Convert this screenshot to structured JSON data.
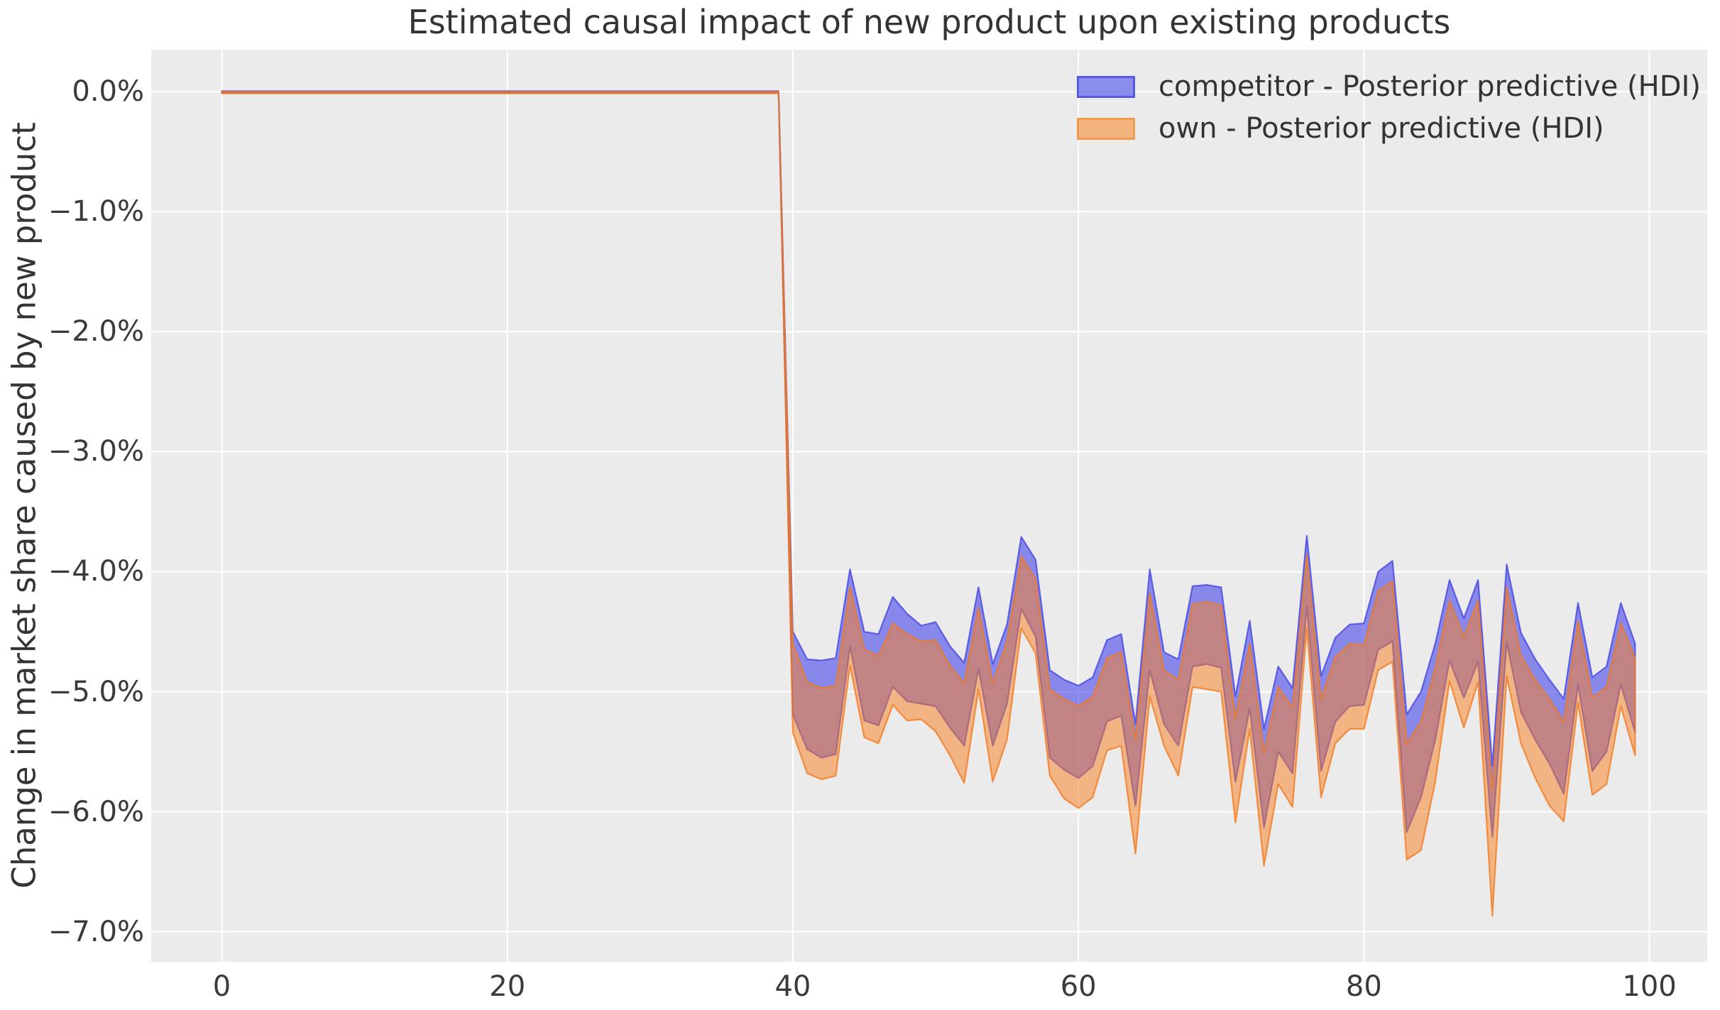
{
  "chart": {
    "title": "Estimated causal impact of new product upon existing products",
    "ylabel": "Change in market share caused by new product"
  },
  "legend": {
    "items": [
      {
        "label": "competitor - Posterior predictive (HDI)",
        "fill": "#8b8dec",
        "edge": "#5659e2"
      },
      {
        "label": "own - Posterior predictive (HDI)",
        "fill": "#f3b37e",
        "edge": "#ef9a4d"
      }
    ]
  },
  "chart_data": {
    "type": "area",
    "title": "Estimated causal impact of new product upon existing products",
    "xlabel": "",
    "ylabel": "Change in market share caused by new product",
    "grid": true,
    "legend_position": "upper right",
    "plot_bg_color": "#ebebeb",
    "grid_color": "#ffffff",
    "text_color": "#3a3a3a",
    "xlim": [
      -4.95,
      104.05
    ],
    "ylim": [
      -7.25,
      0.35
    ],
    "xticks": {
      "values": [
        0,
        20,
        40,
        60,
        80,
        100
      ],
      "labels": [
        "0",
        "20",
        "40",
        "60",
        "80",
        "100"
      ]
    },
    "yticks": {
      "values": [
        0,
        -1,
        -2,
        -3,
        -4,
        -5,
        -6,
        -7
      ],
      "labels": [
        "0.0%",
        "−1.0%",
        "−2.0%",
        "−3.0%",
        "−4.0%",
        "−5.0%",
        "−6.0%",
        "−7.0%"
      ]
    },
    "note": "HDI bands are flat at 0% for x=0..39 (pre-intervention), then drop at x=40; values in percent",
    "series": [
      {
        "name": "competitor",
        "legend_label": "competitor - Posterior predictive (HDI)",
        "fill_color": "#3e3eeb",
        "fill_opacity": 0.57,
        "edge_color": "#4646e1",
        "edge_opacity": 0.8,
        "edge_width": 2.2,
        "x": [
          0,
          39,
          40,
          41,
          42,
          43,
          44,
          45,
          46,
          47,
          48,
          49,
          50,
          51,
          52,
          53,
          54,
          55,
          56,
          57,
          58,
          59,
          60,
          61,
          62,
          63,
          64,
          65,
          66,
          67,
          68,
          69,
          70,
          71,
          72,
          73,
          74,
          75,
          76,
          77,
          78,
          79,
          80,
          81,
          82,
          83,
          84,
          85,
          86,
          87,
          88,
          89,
          90,
          91,
          92,
          93,
          94,
          95,
          96,
          97,
          98,
          99
        ],
        "hi": [
          0.005,
          0.005,
          -4.5,
          -4.73,
          -4.74,
          -4.72,
          -3.98,
          -4.5,
          -4.52,
          -4.21,
          -4.35,
          -4.45,
          -4.42,
          -4.62,
          -4.76,
          -4.13,
          -4.77,
          -4.44,
          -3.71,
          -3.9,
          -4.82,
          -4.9,
          -4.95,
          -4.88,
          -4.57,
          -4.52,
          -5.27,
          -3.98,
          -4.67,
          -4.73,
          -4.12,
          -4.11,
          -4.13,
          -5.04,
          -4.41,
          -5.31,
          -4.79,
          -4.97,
          -3.7,
          -4.87,
          -4.55,
          -4.44,
          -4.43,
          -4.0,
          -3.91,
          -5.19,
          -5.0,
          -4.6,
          -4.07,
          -4.39,
          -4.07,
          -5.62,
          -3.94,
          -4.51,
          -4.73,
          -4.9,
          -5.06,
          -4.26,
          -4.88,
          -4.79,
          -4.26,
          -4.6
        ],
        "lo": [
          -0.01,
          -0.01,
          -5.19,
          -5.48,
          -5.55,
          -5.52,
          -4.62,
          -5.24,
          -5.28,
          -4.96,
          -5.08,
          -5.1,
          -5.12,
          -5.3,
          -5.45,
          -4.81,
          -5.45,
          -5.1,
          -4.31,
          -4.54,
          -5.55,
          -5.65,
          -5.72,
          -5.62,
          -5.25,
          -5.2,
          -5.95,
          -4.82,
          -5.27,
          -5.45,
          -4.79,
          -4.77,
          -4.8,
          -5.75,
          -5.14,
          -6.13,
          -5.5,
          -5.68,
          -4.29,
          -5.66,
          -5.25,
          -5.12,
          -5.11,
          -4.65,
          -4.58,
          -6.17,
          -5.88,
          -5.4,
          -4.74,
          -5.05,
          -4.75,
          -6.21,
          -4.59,
          -5.17,
          -5.4,
          -5.6,
          -5.85,
          -4.94,
          -5.66,
          -5.5,
          -4.94,
          -5.34
        ]
      },
      {
        "name": "own",
        "legend_label": "own - Posterior predictive (HDI)",
        "fill_color": "#fa7e1c",
        "fill_opacity": 0.5,
        "edge_color": "#f2781e",
        "edge_opacity": 0.78,
        "edge_width": 2.2,
        "x": [
          0,
          39,
          40,
          41,
          42,
          43,
          44,
          45,
          46,
          47,
          48,
          49,
          50,
          51,
          52,
          53,
          54,
          55,
          56,
          57,
          58,
          59,
          60,
          61,
          62,
          63,
          64,
          65,
          66,
          67,
          68,
          69,
          70,
          71,
          72,
          73,
          74,
          75,
          76,
          77,
          78,
          79,
          80,
          81,
          82,
          83,
          84,
          85,
          86,
          87,
          88,
          89,
          90,
          91,
          92,
          93,
          94,
          95,
          96,
          97,
          98,
          99
        ],
        "hi": [
          0.0,
          0.0,
          -4.6,
          -4.92,
          -4.97,
          -4.95,
          -4.13,
          -4.65,
          -4.7,
          -4.43,
          -4.52,
          -4.58,
          -4.57,
          -4.78,
          -4.93,
          -4.3,
          -4.93,
          -4.58,
          -3.87,
          -4.06,
          -4.98,
          -5.06,
          -5.12,
          -5.04,
          -4.72,
          -4.67,
          -5.4,
          -4.18,
          -4.82,
          -4.9,
          -4.27,
          -4.25,
          -4.28,
          -5.22,
          -4.6,
          -5.51,
          -4.96,
          -5.13,
          -3.86,
          -5.06,
          -4.71,
          -4.6,
          -4.61,
          -4.16,
          -4.08,
          -5.43,
          -5.25,
          -4.8,
          -4.24,
          -4.54,
          -4.24,
          -5.82,
          -4.13,
          -4.7,
          -4.9,
          -5.06,
          -5.25,
          -4.41,
          -5.05,
          -4.96,
          -4.43,
          -4.72
        ],
        "lo": [
          -0.015,
          -0.015,
          -5.34,
          -5.68,
          -5.73,
          -5.7,
          -4.78,
          -5.38,
          -5.43,
          -5.11,
          -5.24,
          -5.23,
          -5.33,
          -5.53,
          -5.76,
          -4.98,
          -5.75,
          -5.4,
          -4.47,
          -4.68,
          -5.7,
          -5.89,
          -5.97,
          -5.88,
          -5.49,
          -5.45,
          -6.35,
          -5.04,
          -5.45,
          -5.7,
          -4.96,
          -4.98,
          -5.0,
          -6.09,
          -5.31,
          -6.45,
          -5.77,
          -5.96,
          -4.47,
          -5.88,
          -5.43,
          -5.31,
          -5.31,
          -4.82,
          -4.75,
          -6.4,
          -6.32,
          -5.75,
          -4.91,
          -5.3,
          -4.92,
          -6.87,
          -4.87,
          -5.43,
          -5.72,
          -5.95,
          -6.08,
          -5.09,
          -5.86,
          -5.77,
          -5.12,
          -5.53
        ]
      }
    ]
  }
}
